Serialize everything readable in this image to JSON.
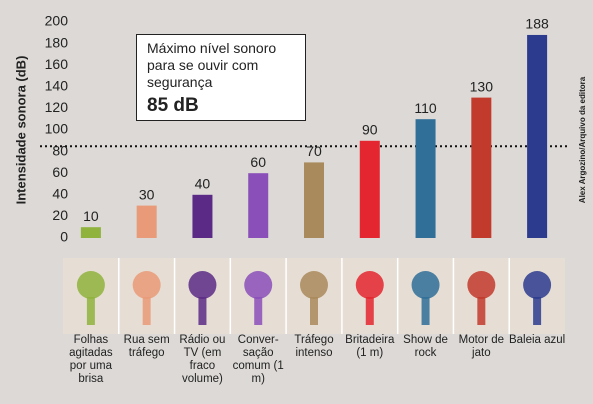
{
  "chart_data": {
    "type": "bar",
    "y_label": "Intensidade sonora (dB)",
    "categories": [
      "Folhas agitadas por uma brisa",
      "Rua sem tráfego",
      "Rádio ou TV (em fraco volume)",
      "Conver- sação comum (1 m)",
      "Tráfego intenso",
      "Britadeira (1 m)",
      "Show de rock",
      "Motor de jato",
      "Baleia azul"
    ],
    "values": [
      10,
      30,
      40,
      60,
      70,
      90,
      110,
      130,
      188
    ],
    "colors": [
      "#8fb33c",
      "#e99a78",
      "#5b2a86",
      "#8a4fb8",
      "#a98a5c",
      "#e3262f",
      "#2f6f98",
      "#c23a2c",
      "#2c3b8e"
    ],
    "ylim": [
      0,
      200
    ],
    "yticks": [
      0,
      20,
      40,
      60,
      80,
      100,
      120,
      140,
      160,
      180,
      200
    ],
    "grid": false,
    "threshold": {
      "value": 85,
      "label": "85 dB",
      "text": "Máximo nível sonoro para se ouvir com segurança"
    },
    "credit": "Alex Argozino/Arquivo da editora"
  }
}
